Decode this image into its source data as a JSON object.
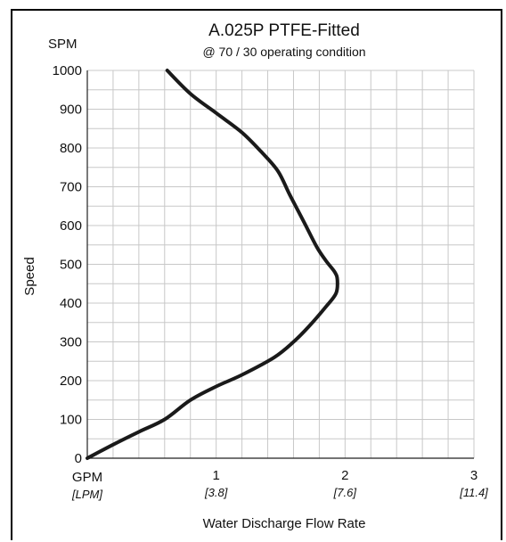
{
  "chart_data": {
    "type": "line",
    "title": "A.025P PTFE-Fitted",
    "subtitle": "@ 70 / 30 operating condition",
    "y_unit": "SPM",
    "ylabel": "Speed",
    "xlabel": "Water Discharge Flow Rate",
    "x_unit_primary": "GPM",
    "x_unit_secondary": "[LPM]",
    "xlim": [
      0,
      3
    ],
    "ylim": [
      0,
      1000
    ],
    "grid": true,
    "x_ticks": [
      {
        "value": 1,
        "label": "1",
        "sub": "[3.8]"
      },
      {
        "value": 2,
        "label": "2",
        "sub": "[7.6]"
      },
      {
        "value": 3,
        "label": "3",
        "sub": "[11.4]"
      }
    ],
    "y_ticks": [
      0,
      100,
      200,
      300,
      400,
      500,
      600,
      700,
      800,
      900,
      1000
    ],
    "series": [
      {
        "x": [
          0.0,
          0.2,
          0.4,
          0.6,
          0.8,
          1.0,
          1.2,
          1.45,
          1.6,
          1.72,
          1.85,
          1.93,
          1.94,
          1.92,
          1.85,
          1.78,
          1.68,
          1.57,
          1.48,
          1.35,
          1.2,
          1.0,
          0.8,
          0.62
        ],
        "y": [
          0,
          35,
          68,
          100,
          150,
          185,
          215,
          260,
          300,
          340,
          390,
          425,
          460,
          480,
          510,
          545,
          610,
          680,
          740,
          790,
          840,
          890,
          940,
          1000
        ]
      }
    ]
  }
}
